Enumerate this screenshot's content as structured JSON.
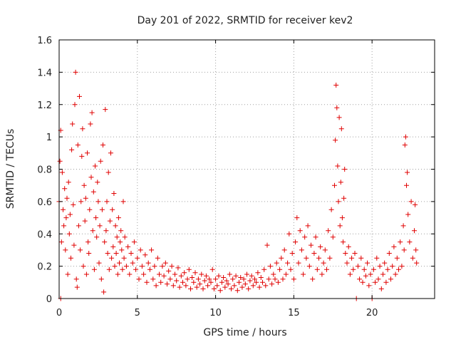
{
  "chart_data": {
    "type": "scatter",
    "title": "Day 201 of 2022, SRMTID for receiver kev2",
    "xlabel": "GPS time / hours",
    "ylabel": "SRMTID / TECUs",
    "xlim": [
      0,
      24
    ],
    "ylim": [
      0,
      1.6
    ],
    "x_ticks": [
      0,
      5,
      10,
      15,
      20
    ],
    "x_tick_labels": [
      "0",
      "5",
      "10",
      "15",
      "20"
    ],
    "y_ticks": [
      0,
      0.2,
      0.4,
      0.6,
      0.8,
      1.0,
      1.2,
      1.4,
      1.6
    ],
    "y_tick_labels": [
      "0",
      "0.2",
      "0.4",
      "0.6",
      "0.8",
      "1",
      "1.2",
      "1.4",
      "1.6"
    ],
    "grid": true,
    "marker": "plus",
    "color": "#e00000",
    "series": [
      {
        "name": "kev2",
        "points": [
          [
            0.0,
            0.6
          ],
          [
            0.05,
            0.85
          ],
          [
            0.1,
            1.04
          ],
          [
            0.1,
            0.0
          ],
          [
            0.15,
            0.35
          ],
          [
            0.2,
            0.78
          ],
          [
            0.25,
            0.55
          ],
          [
            0.3,
            0.45
          ],
          [
            0.35,
            0.68
          ],
          [
            0.4,
            0.3
          ],
          [
            0.45,
            0.5
          ],
          [
            0.5,
            0.62
          ],
          [
            0.55,
            0.15
          ],
          [
            0.6,
            0.72
          ],
          [
            0.65,
            0.4
          ],
          [
            0.7,
            0.52
          ],
          [
            0.75,
            0.25
          ],
          [
            0.8,
            0.92
          ],
          [
            0.85,
            1.08
          ],
          [
            0.9,
            0.58
          ],
          [
            0.95,
            0.33
          ],
          [
            1.0,
            1.2
          ],
          [
            1.05,
            1.4
          ],
          [
            1.1,
            0.12
          ],
          [
            1.15,
            0.07
          ],
          [
            1.2,
            0.95
          ],
          [
            1.25,
            0.45
          ],
          [
            1.3,
            1.25
          ],
          [
            1.35,
            0.3
          ],
          [
            1.4,
            0.6
          ],
          [
            1.45,
            0.88
          ],
          [
            1.5,
            1.05
          ],
          [
            1.55,
            0.2
          ],
          [
            1.6,
            0.7
          ],
          [
            1.65,
            0.48
          ],
          [
            1.7,
            0.62
          ],
          [
            1.75,
            0.15
          ],
          [
            1.8,
            0.9
          ],
          [
            1.85,
            0.35
          ],
          [
            1.9,
            0.28
          ],
          [
            1.95,
            0.55
          ],
          [
            2.0,
            1.08
          ],
          [
            2.05,
            0.75
          ],
          [
            2.1,
            1.15
          ],
          [
            2.15,
            0.42
          ],
          [
            2.2,
            0.66
          ],
          [
            2.25,
            0.18
          ],
          [
            2.3,
            0.82
          ],
          [
            2.35,
            0.5
          ],
          [
            2.4,
            0.38
          ],
          [
            2.45,
            0.72
          ],
          [
            2.5,
            0.6
          ],
          [
            2.55,
            0.22
          ],
          [
            2.6,
            0.45
          ],
          [
            2.65,
            0.85
          ],
          [
            2.7,
            0.12
          ],
          [
            2.75,
            0.55
          ],
          [
            2.8,
            0.95
          ],
          [
            2.85,
            0.04
          ],
          [
            2.9,
            0.35
          ],
          [
            2.95,
            1.17
          ],
          [
            3.0,
            0.42
          ],
          [
            3.05,
            0.6
          ],
          [
            3.1,
            0.28
          ],
          [
            3.15,
            0.78
          ],
          [
            3.2,
            0.18
          ],
          [
            3.25,
            0.48
          ],
          [
            3.3,
            0.9
          ],
          [
            3.35,
            0.25
          ],
          [
            3.4,
            0.55
          ],
          [
            3.45,
            0.32
          ],
          [
            3.5,
            0.65
          ],
          [
            3.55,
            0.2
          ],
          [
            3.6,
            0.45
          ],
          [
            3.65,
            0.28
          ],
          [
            3.7,
            0.38
          ],
          [
            3.75,
            0.15
          ],
          [
            3.8,
            0.5
          ],
          [
            3.85,
            0.22
          ],
          [
            3.9,
            0.35
          ],
          [
            3.95,
            0.42
          ],
          [
            4.0,
            0.3
          ],
          [
            4.05,
            0.18
          ],
          [
            4.1,
            0.6
          ],
          [
            4.15,
            0.25
          ],
          [
            4.2,
            0.38
          ],
          [
            4.3,
            0.2
          ],
          [
            4.4,
            0.32
          ],
          [
            4.5,
            0.15
          ],
          [
            4.6,
            0.28
          ],
          [
            4.7,
            0.22
          ],
          [
            4.8,
            0.35
          ],
          [
            4.9,
            0.18
          ],
          [
            5.0,
            0.25
          ],
          [
            5.1,
            0.12
          ],
          [
            5.2,
            0.3
          ],
          [
            5.3,
            0.2
          ],
          [
            5.4,
            0.15
          ],
          [
            5.5,
            0.27
          ],
          [
            5.6,
            0.1
          ],
          [
            5.7,
            0.22
          ],
          [
            5.8,
            0.18
          ],
          [
            5.9,
            0.3
          ],
          [
            6.0,
            0.12
          ],
          [
            6.1,
            0.2
          ],
          [
            6.2,
            0.08
          ],
          [
            6.3,
            0.25
          ],
          [
            6.4,
            0.15
          ],
          [
            6.5,
            0.1
          ],
          [
            6.6,
            0.2
          ],
          [
            6.7,
            0.14
          ],
          [
            6.8,
            0.22
          ],
          [
            6.9,
            0.09
          ],
          [
            7.0,
            0.17
          ],
          [
            7.1,
            0.12
          ],
          [
            7.2,
            0.2
          ],
          [
            7.3,
            0.08
          ],
          [
            7.4,
            0.15
          ],
          [
            7.5,
            0.11
          ],
          [
            7.6,
            0.19
          ],
          [
            7.7,
            0.07
          ],
          [
            7.8,
            0.14
          ],
          [
            7.9,
            0.1
          ],
          [
            8.0,
            0.16
          ],
          [
            8.1,
            0.08
          ],
          [
            8.2,
            0.12
          ],
          [
            8.3,
            0.18
          ],
          [
            8.4,
            0.06
          ],
          [
            8.5,
            0.13
          ],
          [
            8.6,
            0.1
          ],
          [
            8.7,
            0.16
          ],
          [
            8.8,
            0.07
          ],
          [
            8.9,
            0.12
          ],
          [
            9.0,
            0.09
          ],
          [
            9.1,
            0.15
          ],
          [
            9.2,
            0.06
          ],
          [
            9.3,
            0.11
          ],
          [
            9.4,
            0.14
          ],
          [
            9.5,
            0.08
          ],
          [
            9.6,
            0.12
          ],
          [
            9.7,
            0.1
          ],
          [
            9.8,
            0.18
          ],
          [
            9.9,
            0.06
          ],
          [
            10.0,
            0.12
          ],
          [
            10.1,
            0.08
          ],
          [
            10.2,
            0.14
          ],
          [
            10.3,
            0.05
          ],
          [
            10.4,
            0.1
          ],
          [
            10.5,
            0.13
          ],
          [
            10.6,
            0.07
          ],
          [
            10.7,
            0.11
          ],
          [
            10.8,
            0.09
          ],
          [
            10.9,
            0.15
          ],
          [
            11.0,
            0.06
          ],
          [
            11.1,
            0.12
          ],
          [
            11.2,
            0.08
          ],
          [
            11.3,
            0.14
          ],
          [
            11.4,
            0.05
          ],
          [
            11.5,
            0.1
          ],
          [
            11.6,
            0.13
          ],
          [
            11.7,
            0.07
          ],
          [
            11.8,
            0.12
          ],
          [
            11.9,
            0.09
          ],
          [
            12.0,
            0.15
          ],
          [
            12.1,
            0.06
          ],
          [
            12.2,
            0.11
          ],
          [
            12.3,
            0.14
          ],
          [
            12.4,
            0.08
          ],
          [
            12.5,
            0.12
          ],
          [
            12.6,
            0.1
          ],
          [
            12.7,
            0.16
          ],
          [
            12.8,
            0.07
          ],
          [
            12.9,
            0.13
          ],
          [
            13.0,
            0.1
          ],
          [
            13.1,
            0.18
          ],
          [
            13.2,
            0.08
          ],
          [
            13.3,
            0.33
          ],
          [
            13.4,
            0.12
          ],
          [
            13.5,
            0.2
          ],
          [
            13.6,
            0.09
          ],
          [
            13.7,
            0.15
          ],
          [
            13.8,
            0.12
          ],
          [
            13.9,
            0.22
          ],
          [
            14.0,
            0.1
          ],
          [
            14.1,
            0.18
          ],
          [
            14.2,
            0.25
          ],
          [
            14.3,
            0.12
          ],
          [
            14.4,
            0.3
          ],
          [
            14.5,
            0.15
          ],
          [
            14.6,
            0.22
          ],
          [
            14.7,
            0.4
          ],
          [
            14.8,
            0.18
          ],
          [
            14.9,
            0.28
          ],
          [
            15.0,
            0.12
          ],
          [
            15.1,
            0.35
          ],
          [
            15.2,
            0.5
          ],
          [
            15.3,
            0.22
          ],
          [
            15.4,
            0.42
          ],
          [
            15.5,
            0.3
          ],
          [
            15.6,
            0.15
          ],
          [
            15.7,
            0.38
          ],
          [
            15.8,
            0.25
          ],
          [
            15.9,
            0.45
          ],
          [
            16.0,
            0.2
          ],
          [
            16.1,
            0.33
          ],
          [
            16.2,
            0.12
          ],
          [
            16.3,
            0.28
          ],
          [
            16.4,
            0.38
          ],
          [
            16.5,
            0.18
          ],
          [
            16.6,
            0.25
          ],
          [
            16.7,
            0.32
          ],
          [
            16.8,
            0.15
          ],
          [
            16.9,
            0.22
          ],
          [
            17.0,
            0.3
          ],
          [
            17.1,
            0.18
          ],
          [
            17.2,
            0.42
          ],
          [
            17.3,
            0.25
          ],
          [
            17.4,
            0.55
          ],
          [
            17.5,
            0.38
          ],
          [
            17.6,
            0.7
          ],
          [
            17.65,
            0.98
          ],
          [
            17.7,
            1.32
          ],
          [
            17.75,
            1.18
          ],
          [
            17.8,
            0.82
          ],
          [
            17.85,
            0.6
          ],
          [
            17.9,
            1.12
          ],
          [
            17.95,
            0.45
          ],
          [
            18.0,
            0.72
          ],
          [
            18.05,
            1.05
          ],
          [
            18.1,
            0.5
          ],
          [
            18.15,
            0.35
          ],
          [
            18.2,
            0.62
          ],
          [
            18.25,
            0.8
          ],
          [
            18.3,
            0.28
          ],
          [
            18.4,
            0.22
          ],
          [
            18.5,
            0.32
          ],
          [
            18.6,
            0.15
          ],
          [
            18.7,
            0.25
          ],
          [
            18.8,
            0.18
          ],
          [
            18.9,
            0.28
          ],
          [
            19.0,
            0.0
          ],
          [
            19.1,
            0.2
          ],
          [
            19.2,
            0.12
          ],
          [
            19.3,
            0.25
          ],
          [
            19.4,
            0.1
          ],
          [
            19.5,
            0.18
          ],
          [
            19.6,
            0.14
          ],
          [
            19.7,
            0.22
          ],
          [
            19.8,
            0.08
          ],
          [
            19.9,
            0.15
          ],
          [
            20.0,
            0.0
          ],
          [
            20.1,
            0.18
          ],
          [
            20.2,
            0.1
          ],
          [
            20.3,
            0.25
          ],
          [
            20.4,
            0.12
          ],
          [
            20.5,
            0.2
          ],
          [
            20.6,
            0.06
          ],
          [
            20.7,
            0.15
          ],
          [
            20.8,
            0.22
          ],
          [
            20.9,
            0.1
          ],
          [
            21.0,
            0.18
          ],
          [
            21.1,
            0.28
          ],
          [
            21.2,
            0.12
          ],
          [
            21.3,
            0.2
          ],
          [
            21.4,
            0.32
          ],
          [
            21.5,
            0.15
          ],
          [
            21.6,
            0.25
          ],
          [
            21.7,
            0.18
          ],
          [
            21.8,
            0.35
          ],
          [
            21.9,
            0.2
          ],
          [
            22.0,
            0.45
          ],
          [
            22.05,
            0.3
          ],
          [
            22.1,
            0.95
          ],
          [
            22.15,
            1.0
          ],
          [
            22.2,
            0.7
          ],
          [
            22.25,
            0.78
          ],
          [
            22.3,
            0.52
          ],
          [
            22.4,
            0.35
          ],
          [
            22.5,
            0.6
          ],
          [
            22.6,
            0.25
          ],
          [
            22.7,
            0.42
          ],
          [
            22.75,
            0.58
          ],
          [
            22.8,
            0.3
          ],
          [
            22.85,
            0.22
          ]
        ]
      }
    ]
  }
}
